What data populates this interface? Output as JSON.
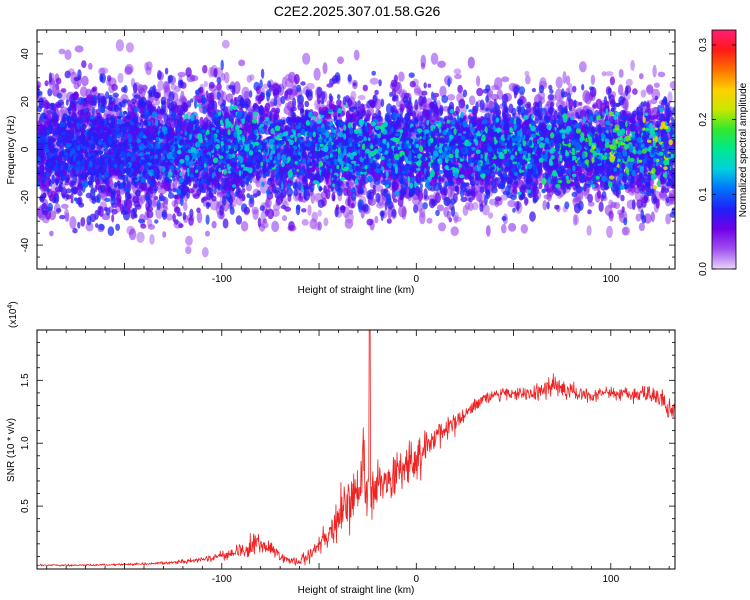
{
  "title": "C2E2.2025.307.01.58.G26",
  "chart_data": [
    {
      "type": "heatmap",
      "title": "C2E2.2025.307.01.58.G26",
      "xlabel": "Height of straight line (km)",
      "ylabel": "Frequency (Hz)",
      "xlim": [
        -195,
        133
      ],
      "ylim": [
        -50,
        50
      ],
      "xticks": [
        -100,
        0,
        100
      ],
      "yticks": [
        -40,
        -20,
        0,
        20,
        40
      ],
      "colorbar": {
        "label": "Normalized spectral amplitude",
        "range": [
          0,
          0.32
        ],
        "ticks": [
          "0.0",
          "0.1",
          "0.2",
          "0.3"
        ],
        "colors": [
          "#e8d4fa",
          "#a050f0",
          "#7000e8",
          "#2020f8",
          "#0070ff",
          "#00d0e0",
          "#00e890",
          "#30e830",
          "#c8e800",
          "#ffd000",
          "#ff7000",
          "#ff1818",
          "#ff1e78"
        ]
      },
      "band": [
        {
          "x": -195,
          "core_hz": 20,
          "outer_hz": 45,
          "peak": 0.1
        },
        {
          "x": -150,
          "core_hz": 20,
          "outer_hz": 47,
          "peak": 0.11
        },
        {
          "x": -110,
          "core_hz": 20,
          "outer_hz": 44,
          "peak": 0.16
        },
        {
          "x": -60,
          "core_hz": 20,
          "outer_hz": 42,
          "peak": 0.17
        },
        {
          "x": 0,
          "core_hz": 19,
          "outer_hz": 40,
          "peak": 0.17
        },
        {
          "x": 60,
          "core_hz": 19,
          "outer_hz": 38,
          "peak": 0.17
        },
        {
          "x": 133,
          "core_hz": 20,
          "outer_hz": 40,
          "peak": 0.25
        }
      ]
    },
    {
      "type": "line",
      "xlabel": "Height of straight line (km)",
      "ylabel": "SNR (10 * v/v)",
      "yscale_note": "(x10",
      "yscale_exp": "4",
      "xlim": [
        -195,
        133
      ],
      "ylim": [
        0,
        1.9
      ],
      "xticks": [
        -100,
        0,
        100
      ],
      "yticks": [
        "0.5",
        "1.0",
        "1.5"
      ],
      "ytick_values": [
        0.5,
        1.0,
        1.5
      ],
      "color": "#ee2222",
      "series": [
        {
          "x": [
            -195,
            -170,
            -140,
            -125,
            -110,
            -95,
            -88,
            -83,
            -79,
            -75,
            -70,
            -65,
            -60,
            -55,
            -50,
            -45,
            -40,
            -35,
            -30,
            -27,
            -24,
            -20,
            -15,
            -10,
            -5,
            0,
            5,
            10,
            15,
            20,
            25,
            30,
            40,
            50,
            60,
            70,
            80,
            90,
            100,
            110,
            120,
            126,
            130,
            133
          ],
          "y": [
            0.03,
            0.03,
            0.04,
            0.05,
            0.08,
            0.12,
            0.15,
            0.22,
            0.18,
            0.17,
            0.1,
            0.07,
            0.06,
            0.12,
            0.2,
            0.28,
            0.4,
            0.5,
            0.62,
            0.75,
            0.6,
            0.7,
            0.72,
            0.78,
            0.82,
            0.88,
            0.95,
            1.05,
            1.1,
            1.15,
            1.22,
            1.32,
            1.38,
            1.4,
            1.4,
            1.45,
            1.42,
            1.38,
            1.4,
            1.38,
            1.4,
            1.35,
            1.25,
            1.3
          ],
          "noise": [
            0.01,
            0.01,
            0.015,
            0.02,
            0.04,
            0.06,
            0.1,
            0.15,
            0.1,
            0.08,
            0.05,
            0.04,
            0.05,
            0.1,
            0.15,
            0.2,
            0.3,
            0.35,
            0.4,
            0.5,
            0.35,
            0.35,
            0.3,
            0.3,
            0.25,
            0.25,
            0.2,
            0.18,
            0.15,
            0.12,
            0.1,
            0.08,
            0.06,
            0.08,
            0.1,
            0.12,
            0.1,
            0.08,
            0.08,
            0.08,
            0.1,
            0.12,
            0.15,
            0.15
          ]
        }
      ]
    }
  ]
}
